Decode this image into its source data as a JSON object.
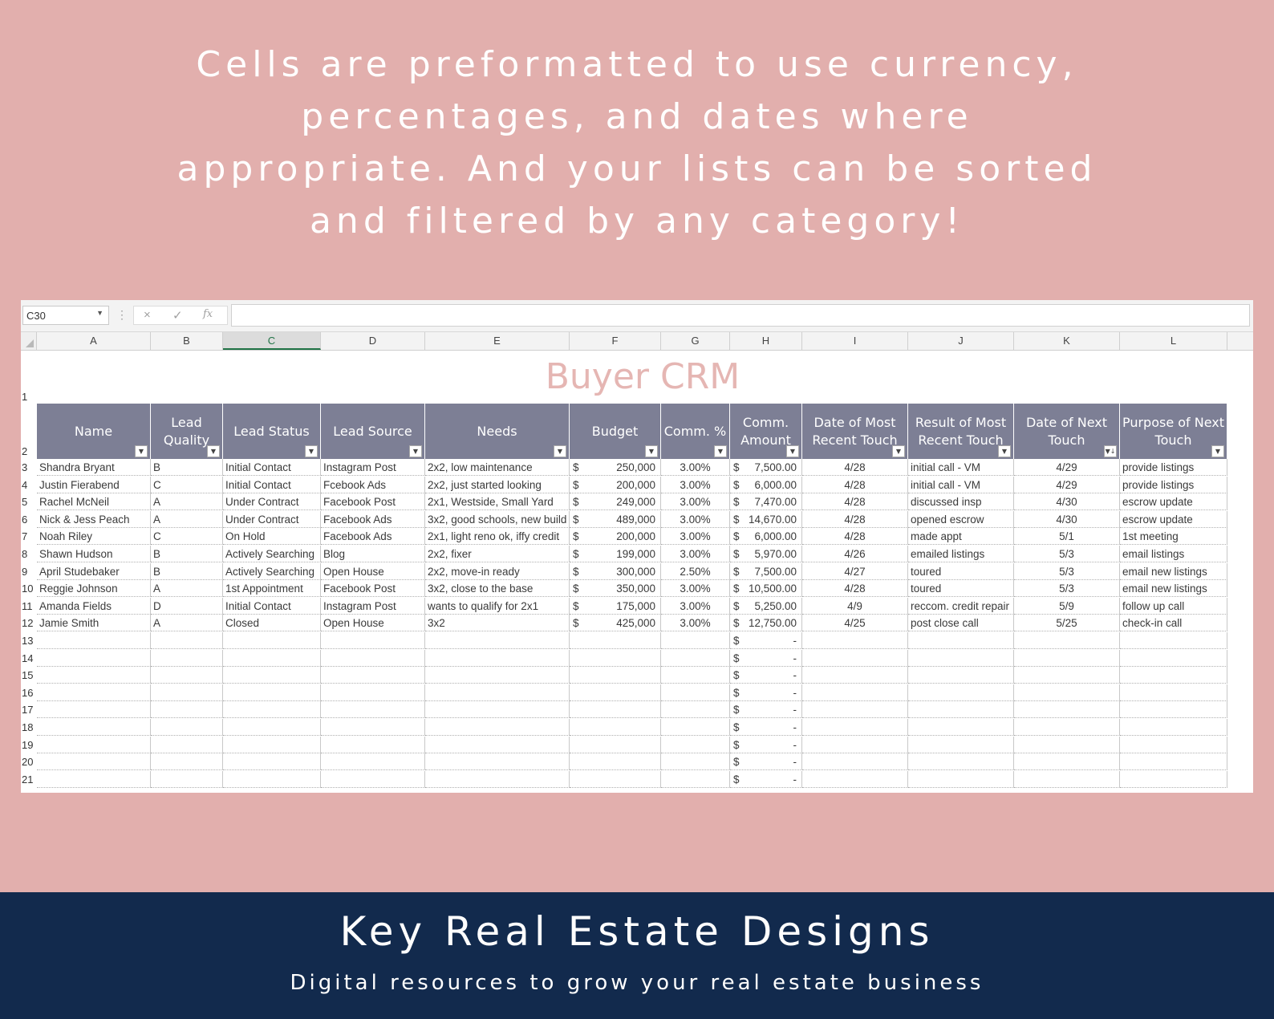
{
  "headline": {
    "line1": "Cells are preformatted to use currency,",
    "line2": "percentages, and dates where",
    "line3": "appropriate. And your lists can be sorted",
    "line4": "and filtered by any category!"
  },
  "formula_bar": {
    "name_box": "C30",
    "cancel_icon": "×",
    "enter_icon": "✓",
    "function_icon": "fx",
    "value": ""
  },
  "column_letters": [
    "A",
    "B",
    "C",
    "D",
    "E",
    "F",
    "G",
    "H",
    "I",
    "J",
    "K",
    "L"
  ],
  "active_column": "C",
  "sheet_title": "Buyer CRM",
  "headers": [
    "Name",
    "Lead Quality",
    "Lead Status",
    "Lead Source",
    "Needs",
    "Budget",
    "Comm. %",
    "Comm. Amount",
    "Date of Most Recent Touch",
    "Result of Most Recent Touch",
    "Date of Next Touch",
    "Purpose of Next Touch"
  ],
  "filter_icons": [
    "▼",
    "▼",
    "▼",
    "▼",
    "▼",
    "▼",
    "▼",
    "▼",
    "▼",
    "▼",
    "▼↓",
    "▼"
  ],
  "currency_symbol": "$",
  "empty_amount": "-",
  "rows": [
    {
      "n": "3",
      "name": "Shandra Bryant",
      "quality": "B",
      "status": "Initial Contact",
      "source": "Instagram Post",
      "needs": "2x2, low maintenance",
      "budget": "250,000",
      "pct": "3.00%",
      "comm": "7,500.00",
      "recent_date": "4/28",
      "recent_result": "initial call - VM",
      "next_date": "4/29",
      "next_purpose": "provide listings"
    },
    {
      "n": "4",
      "name": "Justin Fierabend",
      "quality": "C",
      "status": "Initial Contact",
      "source": "Fcebook Ads",
      "needs": "2x2, just started looking",
      "budget": "200,000",
      "pct": "3.00%",
      "comm": "6,000.00",
      "recent_date": "4/28",
      "recent_result": "initial call - VM",
      "next_date": "4/29",
      "next_purpose": "provide listings"
    },
    {
      "n": "5",
      "name": "Rachel McNeil",
      "quality": "A",
      "status": "Under Contract",
      "source": "Facebook Post",
      "needs": "2x1, Westside, Small Yard",
      "budget": "249,000",
      "pct": "3.00%",
      "comm": "7,470.00",
      "recent_date": "4/28",
      "recent_result": "discussed insp",
      "next_date": "4/30",
      "next_purpose": "escrow update"
    },
    {
      "n": "6",
      "name": "Nick & Jess Peach",
      "quality": "A",
      "status": "Under Contract",
      "source": "Facebook Ads",
      "needs": "3x2, good schools, new build",
      "budget": "489,000",
      "pct": "3.00%",
      "comm": "14,670.00",
      "recent_date": "4/28",
      "recent_result": "opened escrow",
      "next_date": "4/30",
      "next_purpose": "escrow update"
    },
    {
      "n": "7",
      "name": "Noah Riley",
      "quality": "C",
      "status": "On Hold",
      "source": "Facebook Ads",
      "needs": "2x1, light reno ok, iffy credit",
      "budget": "200,000",
      "pct": "3.00%",
      "comm": "6,000.00",
      "recent_date": "4/28",
      "recent_result": "made appt",
      "next_date": "5/1",
      "next_purpose": "1st meeting"
    },
    {
      "n": "8",
      "name": "Shawn Hudson",
      "quality": "B",
      "status": "Actively Searching",
      "source": "Blog",
      "needs": "2x2, fixer",
      "budget": "199,000",
      "pct": "3.00%",
      "comm": "5,970.00",
      "recent_date": "4/26",
      "recent_result": "emailed listings",
      "next_date": "5/3",
      "next_purpose": "email listings"
    },
    {
      "n": "9",
      "name": "April Studebaker",
      "quality": "B",
      "status": "Actively Searching",
      "source": "Open House",
      "needs": "2x2, move-in ready",
      "budget": "300,000",
      "pct": "2.50%",
      "comm": "7,500.00",
      "recent_date": "4/27",
      "recent_result": "toured",
      "next_date": "5/3",
      "next_purpose": "email new listings"
    },
    {
      "n": "10",
      "name": "Reggie Johnson",
      "quality": "A",
      "status": "1st Appointment",
      "source": "Facebook Post",
      "needs": "3x2, close to the base",
      "budget": "350,000",
      "pct": "3.00%",
      "comm": "10,500.00",
      "recent_date": "4/28",
      "recent_result": "toured",
      "next_date": "5/3",
      "next_purpose": "email new listings"
    },
    {
      "n": "11",
      "name": "Amanda Fields",
      "quality": "D",
      "status": "Initial Contact",
      "source": "Instagram Post",
      "needs": "wants to qualify for 2x1",
      "budget": "175,000",
      "pct": "3.00%",
      "comm": "5,250.00",
      "recent_date": "4/9",
      "recent_result": "reccom. credit repair",
      "next_date": "5/9",
      "next_purpose": "follow up call"
    },
    {
      "n": "12",
      "name": "Jamie Smith",
      "quality": "A",
      "status": "Closed",
      "source": "Open House",
      "needs": "3x2",
      "budget": "425,000",
      "pct": "3.00%",
      "comm": "12,750.00",
      "recent_date": "4/25",
      "recent_result": "post close call",
      "next_date": "5/25",
      "next_purpose": "check-in call"
    }
  ],
  "empty_row_numbers": [
    "13",
    "14",
    "15",
    "16",
    "17",
    "18",
    "19",
    "20",
    "21"
  ],
  "title_row_number": "1",
  "header_row_number": "2",
  "brand": {
    "title": "Key Real Estate Designs",
    "subtitle": "Digital resources to grow your real estate business"
  },
  "colors": {
    "background": "#e2afad",
    "header_fill": "#7d7f95",
    "title_text": "#e5b6b3",
    "brand_bar": "#122a4d"
  }
}
